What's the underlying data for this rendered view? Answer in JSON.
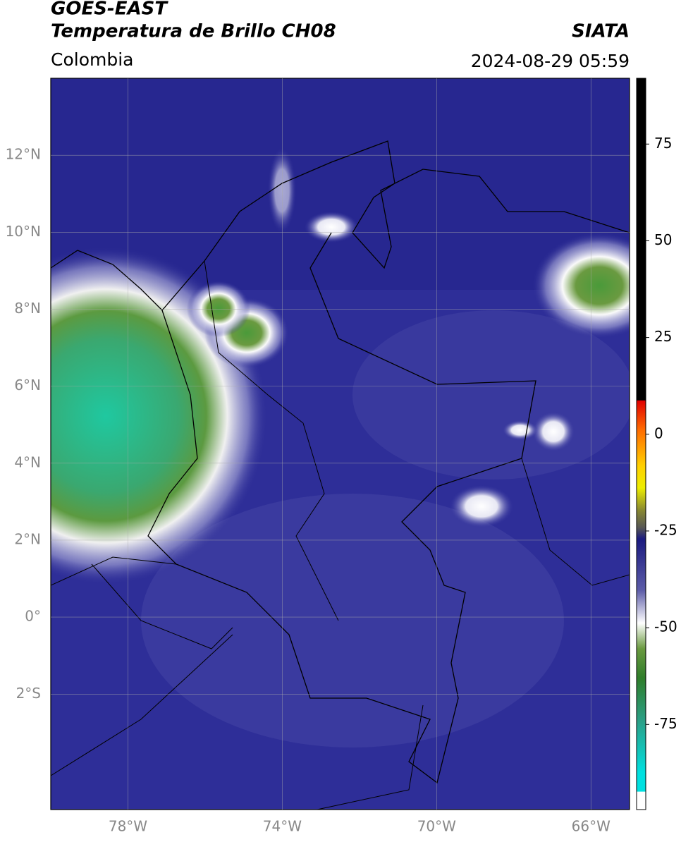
{
  "header": {
    "title": "GOES-EAST",
    "subtitle": "Temperatura de Brillo CH08",
    "region": "Colombia",
    "source": "SIATA",
    "datetime": "2024-08-29 05:59"
  },
  "map": {
    "xlim": [
      -80,
      -65
    ],
    "ylim": [
      -5,
      14
    ],
    "xticks": [
      {
        "value": -78,
        "label": "78°W"
      },
      {
        "value": -74,
        "label": "74°W"
      },
      {
        "value": -70,
        "label": "70°W"
      },
      {
        "value": -66,
        "label": "66°W"
      }
    ],
    "yticks": [
      {
        "value": 12,
        "label": "12°N"
      },
      {
        "value": 10,
        "label": "10°N"
      },
      {
        "value": 8,
        "label": "8°N"
      },
      {
        "value": 6,
        "label": "6°N"
      },
      {
        "value": 4,
        "label": "4°N"
      },
      {
        "value": 2,
        "label": "2°N"
      },
      {
        "value": 0,
        "label": "0°"
      },
      {
        "value": -2,
        "label": "2°S"
      }
    ]
  },
  "colorbar": {
    "lim": [
      -97,
      92
    ],
    "ticks": [
      75,
      50,
      25,
      0,
      -25,
      -50,
      -75
    ]
  }
}
